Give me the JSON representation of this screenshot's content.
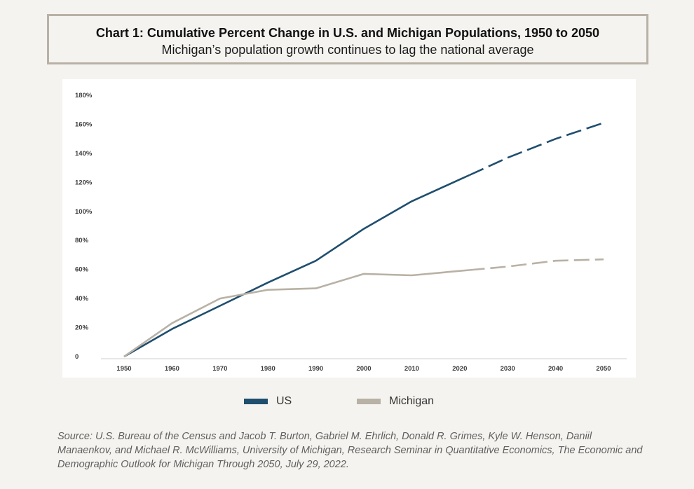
{
  "header": {
    "title": "Chart 1: Cumulative Percent Change in U.S. and Michigan Populations, 1950 to 2050",
    "subtitle": "Michigan’s population growth continues to lag the national average"
  },
  "colors": {
    "us": "#1f4e6e",
    "michigan": "#b8b1a5",
    "axis": "#cfcfcf"
  },
  "chart_data": {
    "type": "line",
    "x": [
      1950,
      1960,
      1970,
      1980,
      1990,
      2000,
      2010,
      2020,
      2030,
      2040,
      2050
    ],
    "xticks": [
      "1950",
      "1960",
      "1970",
      "1980",
      "1990",
      "2000",
      "2010",
      "2020",
      "2030",
      "2040",
      "2050"
    ],
    "yticks": [
      "0",
      "20%",
      "40%",
      "60%",
      "80%",
      "100%",
      "120%",
      "140%",
      "160%",
      "180%"
    ],
    "ylim": [
      0,
      180
    ],
    "projected_from": 2022,
    "series": [
      {
        "name": "US",
        "color": "#1f4e6e",
        "values": [
          0,
          19,
          35,
          51,
          66,
          88,
          107,
          122,
          137,
          150,
          161
        ]
      },
      {
        "name": "Michigan",
        "color": "#b8b1a5",
        "values": [
          0,
          23,
          40,
          46,
          47,
          57,
          56,
          59,
          62,
          66,
          67
        ]
      }
    ],
    "grid": false,
    "legend_position": "bottom"
  },
  "source": "Source: U.S. Bureau of the Census and Jacob T. Burton, Gabriel M. Ehrlich, Donald R. Grimes, Kyle W. Henson, Daniil Manaenkov, and Michael R. McWilliams, University of Michigan, Research Seminar in Quantitative Economics, The Economic and Demographic Outlook for Michigan Through 2050, July 29, 2022."
}
